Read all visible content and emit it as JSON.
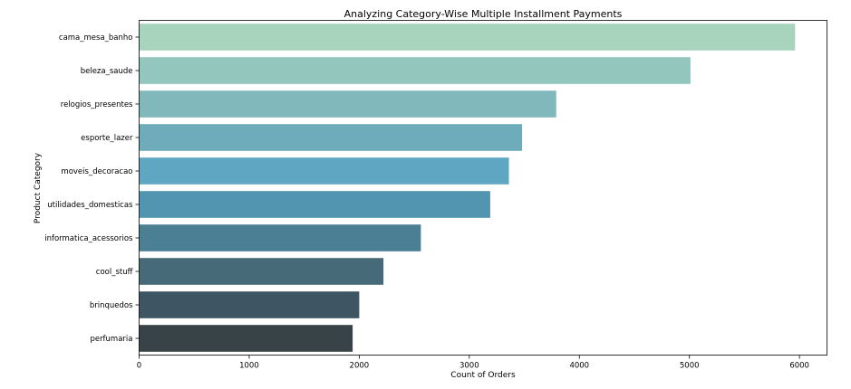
{
  "chart_data": {
    "type": "bar",
    "orientation": "horizontal",
    "title": "Analyzing Category-Wise Multiple Installment Payments",
    "xlabel": "Count of Orders",
    "ylabel": "Product Category",
    "xlim": [
      0,
      6250
    ],
    "xticks": [
      0,
      1000,
      2000,
      3000,
      4000,
      5000,
      6000
    ],
    "grid": false,
    "categories": [
      "cama_mesa_banho",
      "beleza_saude",
      "relogios_presentes",
      "esporte_lazer",
      "moveis_decoracao",
      "utilidades_domesticas",
      "informatica_acessorios",
      "cool_stuff",
      "brinquedos",
      "perfumaria"
    ],
    "values": [
      5960,
      5010,
      3790,
      3480,
      3360,
      3190,
      2560,
      2220,
      2000,
      1940
    ],
    "colors": [
      "#a8d3bd",
      "#93c6bd",
      "#81b8bb",
      "#6eacbb",
      "#5ea6c2",
      "#5295b0",
      "#4a7f94",
      "#466a78",
      "#3e5663",
      "#374347"
    ]
  }
}
